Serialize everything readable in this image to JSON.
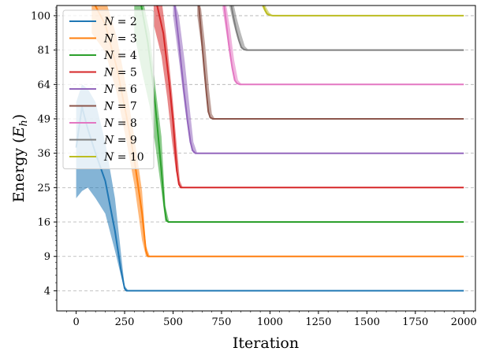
{
  "chart_data": {
    "type": "line",
    "xlabel": "Iteration",
    "ylabel": "Energy (E_h)",
    "ylabel_parts": {
      "main": "Energy (",
      "sym": "E",
      "sub": "h",
      "close": ")"
    },
    "xlim": [
      -100,
      2060
    ],
    "ylim": [
      2,
      106
    ],
    "ytransform": "sqrt",
    "xticks": [
      0,
      250,
      500,
      750,
      1000,
      1250,
      1500,
      1750,
      2000
    ],
    "yticks": [
      4,
      9,
      16,
      25,
      36,
      49,
      64,
      81,
      100
    ],
    "grid": "horizontal-dashed",
    "legend_position": "upper-left",
    "series": [
      {
        "label_left": "N",
        "label_right": "= 2",
        "color": "#1f77b4",
        "x": [
          0,
          30,
          60,
          100,
          150,
          200,
          230,
          250,
          260,
          2000
        ],
        "y": [
          38,
          54,
          45,
          36,
          27,
          14,
          7,
          4.3,
          4,
          4
        ],
        "band": {
          "x": [
            0,
            30,
            60,
            100,
            150,
            200,
            250,
            270
          ],
          "lo": [
            22,
            24,
            25,
            22,
            18,
            10,
            4.0,
            4
          ],
          "hi": [
            56,
            64,
            62,
            56,
            40,
            22,
            4.6,
            4
          ]
        }
      },
      {
        "label_left": "N",
        "label_right": "= 3",
        "color": "#ff7f0e",
        "x": [
          80,
          150,
          210,
          260,
          300,
          340,
          360,
          370,
          2000
        ],
        "y": [
          110,
          95,
          72,
          50,
          34,
          18,
          10,
          9,
          9
        ],
        "band": {
          "x": [
            80,
            150,
            210,
            260,
            300,
            340,
            360,
            380
          ],
          "lo": [
            90,
            80,
            60,
            40,
            26,
            12,
            9,
            9
          ],
          "hi": [
            115,
            110,
            88,
            62,
            42,
            24,
            11,
            9
          ]
        }
      },
      {
        "label_left": "N",
        "label_right": "= 4",
        "color": "#2ca02c",
        "x": [
          330,
          370,
          400,
          420,
          440,
          455,
          465,
          475,
          2000
        ],
        "y": [
          110,
          85,
          62,
          45,
          30,
          20,
          16.5,
          16,
          16
        ],
        "band": {
          "x": [
            300,
            340,
            380,
            410,
            440,
            460,
            480
          ],
          "lo": [
            90,
            70,
            54,
            38,
            24,
            16,
            16
          ],
          "hi": [
            115,
            112,
            90,
            62,
            42,
            20,
            16
          ]
        }
      },
      {
        "label_left": "N",
        "label_right": "= 5",
        "color": "#d62728",
        "x": [
          410,
          450,
          480,
          500,
          510,
          520,
          530,
          540,
          2000
        ],
        "y": [
          110,
          90,
          65,
          48,
          38,
          30,
          26,
          25,
          25
        ],
        "band": {
          "x": [
            400,
            440,
            470,
            495,
            515,
            535,
            550
          ],
          "lo": [
            95,
            78,
            58,
            40,
            30,
            25,
            25
          ],
          "hi": [
            112,
            110,
            84,
            60,
            42,
            27,
            25
          ]
        }
      },
      {
        "label_left": "N",
        "label_right": "= 6",
        "color": "#9467bd",
        "x": [
          505,
          530,
          555,
          575,
          590,
          600,
          615,
          2000
        ],
        "y": [
          110,
          85,
          62,
          48,
          40,
          37,
          36,
          36
        ],
        "band": {
          "x": [
            500,
            530,
            560,
            585,
            605,
            625
          ],
          "lo": [
            100,
            76,
            54,
            40,
            36,
            36
          ],
          "hi": [
            112,
            100,
            75,
            54,
            40,
            36
          ]
        }
      },
      {
        "label_left": "N",
        "label_right": "= 7",
        "color": "#8c564b",
        "x": [
          630,
          645,
          660,
          672,
          682,
          692,
          705,
          2000
        ],
        "y": [
          110,
          90,
          72,
          60,
          52,
          49.5,
          49,
          49
        ],
        "band": {
          "x": [
            625,
            645,
            665,
            685,
            700,
            715
          ],
          "lo": [
            100,
            84,
            66,
            52,
            49,
            49
          ],
          "hi": [
            112,
            104,
            84,
            62,
            51,
            49
          ]
        }
      },
      {
        "label_left": "N",
        "label_right": "= 8",
        "color": "#e377c2",
        "x": [
          760,
          775,
          790,
          805,
          818,
          830,
          845,
          2000
        ],
        "y": [
          110,
          95,
          82,
          72,
          66,
          64.5,
          64,
          64
        ],
        "band": {
          "x": [
            755,
            775,
            795,
            815,
            835,
            855
          ],
          "lo": [
            104,
            90,
            76,
            66,
            64,
            64
          ],
          "hi": [
            112,
            106,
            92,
            76,
            66,
            64
          ]
        }
      },
      {
        "label_left": "N",
        "label_right": "= 9",
        "color": "#7f7f7f",
        "x": [
          795,
          810,
          825,
          840,
          852,
          865,
          880,
          2000
        ],
        "y": [
          110,
          100,
          92,
          86,
          82.5,
          81.3,
          81,
          81
        ],
        "band": {
          "x": [
            790,
            810,
            830,
            850,
            870,
            890
          ],
          "lo": [
            106,
            96,
            88,
            82,
            81,
            81
          ],
          "hi": [
            112,
            108,
            98,
            90,
            83,
            81
          ]
        }
      },
      {
        "label_left": "N",
        "label_right": "= 10",
        "color": "#bcbd22",
        "x": [
          955,
          965,
          975,
          985,
          1000,
          1015,
          2000
        ],
        "y": [
          110,
          106,
          103,
          101,
          100.3,
          100,
          100
        ],
        "band": {
          "x": [
            950,
            965,
            980,
            995,
            1015
          ],
          "lo": [
            108,
            104,
            101,
            100,
            100
          ],
          "hi": [
            112,
            110,
            105,
            102,
            100
          ]
        }
      }
    ]
  }
}
